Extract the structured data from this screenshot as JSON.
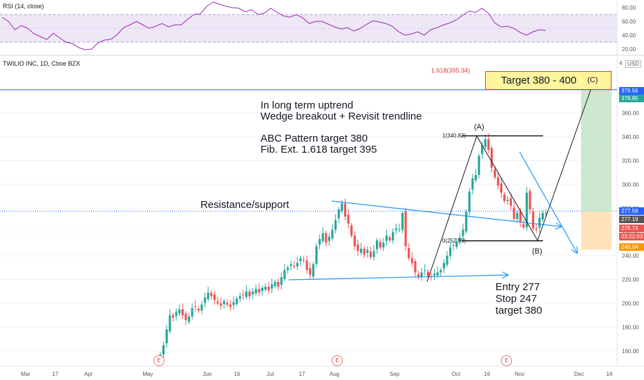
{
  "rsi": {
    "label": "RSI (14, close)",
    "ticks": [
      "80.00",
      "60.00",
      "40.00",
      "20.00"
    ]
  },
  "chart": {
    "symbol": "TWILIO INC, 1D, Cboe BZX",
    "currency": "USD",
    "currency_mark": "4"
  },
  "annotations": {
    "target_box": "Target 380 - 400",
    "wave_c": "(C)",
    "wave_a": "(A)",
    "wave_b": "(B)",
    "fib_ext": "1.618(395.34)",
    "fib_top": "1(340.82)",
    "fib_bottom": "0(252.59)",
    "long_trend": "In long term uptrend",
    "wedge": "Wedge breakout + Revisit trendline",
    "abc": "ABC Pattern target 380",
    "fib_text": "Fib. Ext. 1.618 target 395",
    "resistance": "Resistance/support",
    "entry": "Entry 277",
    "stop": "Stop  247",
    "target": "target 380"
  },
  "price_tags": [
    {
      "text": "379.56",
      "color": "#2962ff"
    },
    {
      "text": "378.95",
      "color": "#26a69a"
    },
    {
      "text": "277.58",
      "color": "#2962ff"
    },
    {
      "text": "277.19",
      "color": "#555555"
    },
    {
      "text": "276.74",
      "color": "#ef5350"
    },
    {
      "text": "03:22:03",
      "color": "#ef5350"
    },
    {
      "text": "245.04",
      "color": "#ff9800"
    }
  ],
  "earnings_badge": "E",
  "colors": {
    "up": "#26a69a",
    "down": "#ef5350",
    "trend": "#2196f3",
    "rsi_line": "#9c27b0",
    "rsi_band": "#ede7f6",
    "profit": "#c8e6c9",
    "loss": "#ffe0b2"
  },
  "chart_data": {
    "type": "candlestick",
    "title": "TWILIO INC, 1D, Cboe BZX",
    "ylabel": "USD",
    "ylim": [
      150,
      405
    ],
    "y_ticks": [
      160,
      180,
      200,
      220,
      240,
      260,
      280,
      300,
      320,
      340,
      360
    ],
    "x_ticks": [
      "Mar",
      "17",
      "Apr",
      "May",
      "Jun",
      "16",
      "Jul",
      "17",
      "Aug",
      "Sep",
      "Oct",
      "16",
      "Nov",
      "Dec",
      "16"
    ],
    "closes": [
      157,
      165,
      178,
      190,
      188,
      193,
      195,
      190,
      186,
      189,
      196,
      197,
      194,
      199,
      205,
      209,
      206,
      203,
      200,
      198,
      202,
      199,
      197,
      201,
      204,
      206,
      207,
      210,
      206,
      210,
      212,
      209,
      213,
      214,
      211,
      216,
      218,
      214,
      222,
      228,
      230,
      233,
      231,
      234,
      238,
      236,
      228,
      224,
      233,
      248,
      254,
      259,
      251,
      256,
      262,
      270,
      279,
      284,
      273,
      267,
      257,
      248,
      244,
      246,
      241,
      245,
      239,
      244,
      253,
      247,
      251,
      257,
      253,
      260,
      263,
      262,
      276,
      248,
      238,
      234,
      226,
      222,
      226,
      228,
      223,
      222,
      225,
      226,
      228,
      234,
      240,
      247,
      249,
      252,
      255,
      262,
      277,
      294,
      305,
      308,
      324,
      333,
      338,
      329,
      314,
      306,
      299,
      293,
      286,
      287,
      282,
      271,
      276,
      268,
      264,
      293,
      279,
      263,
      262,
      272,
      276,
      276
    ],
    "rsi_ticks": [
      80,
      60,
      40,
      20
    ],
    "rsi": [
      66,
      60,
      48,
      54,
      50,
      42,
      38,
      34,
      43,
      36,
      30,
      28,
      22,
      19,
      20,
      29,
      33,
      34,
      41,
      51,
      55,
      60,
      55,
      50,
      53,
      57,
      52,
      55,
      55,
      63,
      70,
      71,
      82,
      88,
      85,
      82,
      80,
      79,
      74,
      77,
      70,
      72,
      79,
      73,
      68,
      66,
      70,
      65,
      57,
      60,
      60,
      56,
      52,
      49,
      51,
      46,
      50,
      56,
      61,
      59,
      57,
      53,
      45,
      40,
      42,
      45,
      40,
      48,
      51,
      55,
      58,
      62,
      69,
      75,
      73,
      79,
      72,
      58,
      52,
      53,
      50,
      44,
      40,
      45,
      48,
      47
    ],
    "horizontal_levels": [
      379.56,
      277.58
    ],
    "fib_levels": {
      "0": 252.59,
      "1": 340.82,
      "1.618": 395.34
    },
    "trendlines": [
      {
        "name": "wedge-upper",
        "from": [
          "Aug",
          287
        ],
        "to": [
          "Nov",
          270
        ]
      },
      {
        "name": "wedge-lower",
        "from": [
          "Jul",
          218
        ],
        "to": [
          "Oct",
          221
        ]
      }
    ],
    "abc_waves": {
      "A": 340.82,
      "B": 252.59,
      "C": 395.34
    },
    "position": {
      "entry": 277,
      "stop": 247,
      "target": 380,
      "stop_tag": 245.04,
      "target_tag": 378.95
    }
  }
}
